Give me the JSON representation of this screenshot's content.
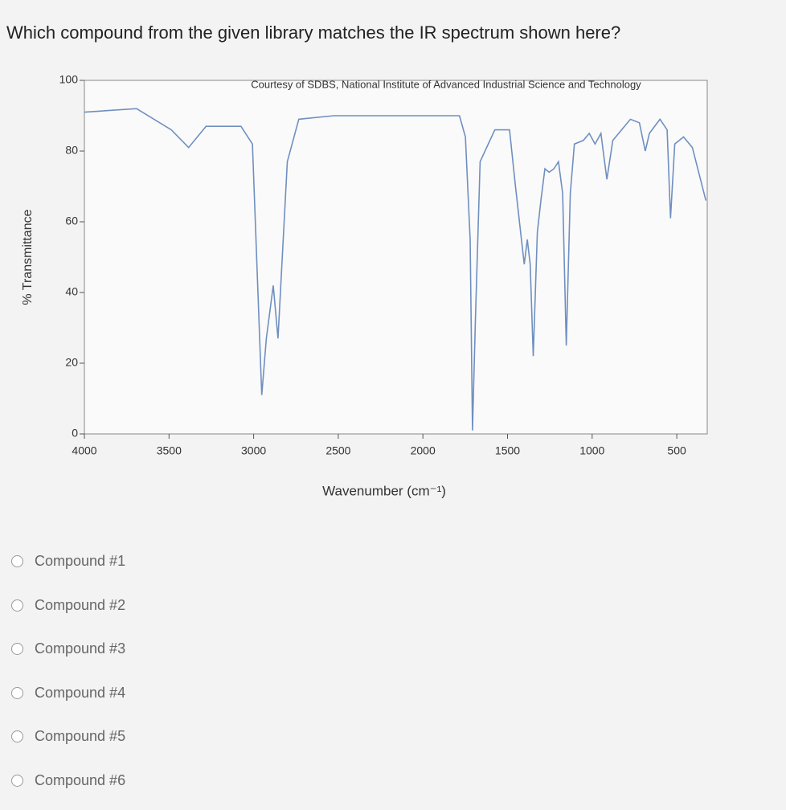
{
  "question": "Which compound from the given library matches the IR spectrum shown here?",
  "chart_data": {
    "type": "line",
    "annotation": "Courtesy of SDBS, National Institute of Advanced Industrial Science and Technology",
    "xlabel": "Wavenumber (cm⁻¹)",
    "ylabel": "% Transmittance",
    "x": [
      4000,
      3692,
      3486,
      3384,
      3281,
      3075,
      3007,
      2952,
      2925,
      2884,
      2856,
      2801,
      2733,
      2527,
      1784,
      1749,
      1721,
      1707,
      1690,
      1662,
      1575,
      1488,
      1453,
      1418,
      1401,
      1383,
      1366,
      1348,
      1324,
      1303,
      1279,
      1254,
      1226,
      1199,
      1174,
      1153,
      1129,
      1105,
      1052,
      1017,
      983,
      948,
      913,
      878,
      826,
      774,
      721,
      686,
      662,
      599,
      557,
      537,
      512,
      460,
      408,
      328
    ],
    "values": [
      91,
      92,
      86,
      81,
      87,
      87,
      82,
      11,
      27,
      42,
      27,
      77,
      89,
      90,
      90,
      84,
      55,
      1,
      32,
      77,
      86,
      86,
      70,
      55,
      48,
      55,
      48,
      22,
      57,
      66,
      75,
      74,
      75,
      77,
      68,
      25,
      68,
      82,
      83,
      85,
      82,
      85,
      72,
      83,
      86,
      89,
      88,
      80,
      85,
      89,
      86,
      61,
      82,
      84,
      81,
      66
    ],
    "color": "#6f8fc0",
    "xlim": [
      4000,
      320
    ],
    "xticks": [
      4000,
      3500,
      3000,
      2500,
      2000,
      1500,
      1000,
      500
    ],
    "ylim": [
      0,
      100
    ],
    "yticks": [
      0,
      20,
      40,
      60,
      80,
      100
    ]
  },
  "options": [
    "Compound #1",
    "Compound #2",
    "Compound #3",
    "Compound #4",
    "Compound #5",
    "Compound #6"
  ]
}
